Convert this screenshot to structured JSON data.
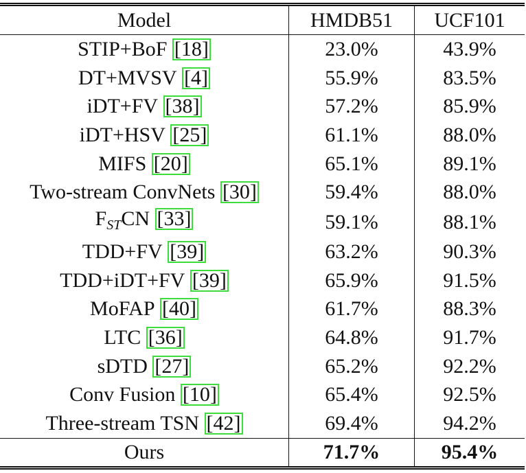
{
  "table": {
    "header": [
      "Model",
      "HMDB51",
      "UCF101"
    ],
    "rows": [
      {
        "model": "STIP+BoF",
        "ref": "[18]",
        "hmdb": "23.0%",
        "ucf": "43.9%"
      },
      {
        "model": "DT+MVSV",
        "ref": "[4]",
        "hmdb": "55.9%",
        "ucf": "83.5%"
      },
      {
        "model": "iDT+FV",
        "ref": "[38]",
        "hmdb": "57.2%",
        "ucf": "85.9%"
      },
      {
        "model": "iDT+HSV",
        "ref": "[25]",
        "hmdb": "61.1%",
        "ucf": "88.0%"
      },
      {
        "model": "MIFS",
        "ref": "[20]",
        "hmdb": "65.1%",
        "ucf": "89.1%"
      },
      {
        "model": "Two-stream ConvNets",
        "ref": "[30]",
        "hmdb": "59.4%",
        "ucf": "88.0%"
      },
      {
        "model": "F",
        "model_sub": "ST",
        "model_rest": "CN",
        "ref": "[33]",
        "hmdb": "59.1%",
        "ucf": "88.1%"
      },
      {
        "model": "TDD+FV",
        "ref": "[39]",
        "hmdb": "63.2%",
        "ucf": "90.3%"
      },
      {
        "model": "TDD+iDT+FV",
        "ref": "[39]",
        "hmdb": "65.9%",
        "ucf": "91.5%"
      },
      {
        "model": "MoFAP",
        "ref": "[40]",
        "hmdb": "61.7%",
        "ucf": "88.3%"
      },
      {
        "model": "LTC",
        "ref": "[36]",
        "hmdb": "64.8%",
        "ucf": "91.7%"
      },
      {
        "model": "sDTD",
        "ref": "[27]",
        "hmdb": "65.2%",
        "ucf": "92.2%"
      },
      {
        "model": "Conv Fusion",
        "ref": "[10]",
        "hmdb": "65.4%",
        "ucf": "92.5%"
      },
      {
        "model": "Three-stream TSN",
        "ref": "[42]",
        "hmdb": "69.4%",
        "ucf": "94.2%"
      }
    ],
    "final": {
      "model": "Ours",
      "hmdb": "71.7%",
      "ucf": "95.4%"
    }
  }
}
